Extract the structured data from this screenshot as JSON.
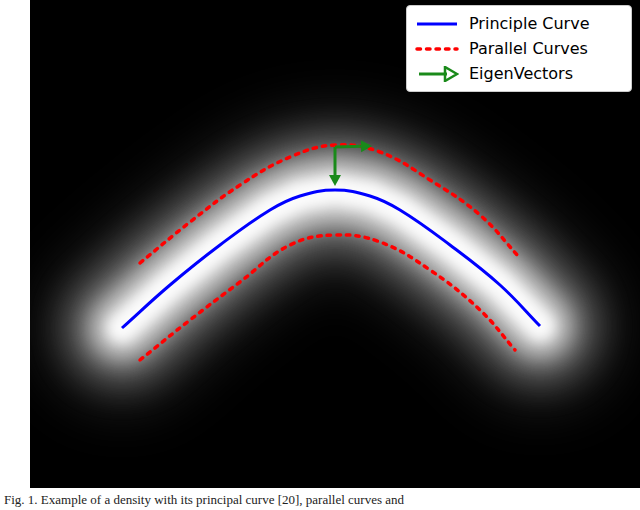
{
  "chart_data": {
    "type": "line",
    "caption": "Fig. 1.  Example of a density with its principal curve [20], parallel curves and",
    "xlim": [
      0,
      610
    ],
    "ylim": [
      0,
      488
    ],
    "tick_labels": false,
    "grid": false,
    "legend": "upper right",
    "series": [
      {
        "name": "Principle Curve",
        "color": "#0000ff",
        "line_style": "solid",
        "curves": [
          {
            "x": [
              92,
              140,
              190,
              240,
              270,
              305,
              340,
              370,
              420,
              470,
              510
            ],
            "values": [
              160,
              203,
              243,
              278,
              292,
              298,
              292,
              278,
              243,
              203,
              162
            ]
          }
        ]
      },
      {
        "name": "Parallel Curves",
        "color": "#ff0000",
        "line_style": "dotted",
        "curves": [
          {
            "x": [
              110,
              160,
              210,
              260,
              305,
              350,
              400,
              450,
              490
            ],
            "values": [
              225,
              266,
              303,
              331,
              343,
              336,
              308,
              273,
              230
            ]
          },
          {
            "x": [
              110,
              160,
              210,
              260,
              305,
              350,
              400,
              450,
              485
            ],
            "values": [
              128,
              168,
              206,
              243,
              253,
              246,
              218,
              178,
              138
            ]
          }
        ]
      },
      {
        "name": "EigenVectors",
        "color": "#1a8a1a",
        "type": "arrow",
        "curves": [
          {
            "x": [
              305,
              305
            ],
            "values": [
              341,
              302
            ]
          },
          {
            "x": [
              305,
              342
            ],
            "values": [
              341,
              342
            ]
          }
        ]
      }
    ]
  }
}
